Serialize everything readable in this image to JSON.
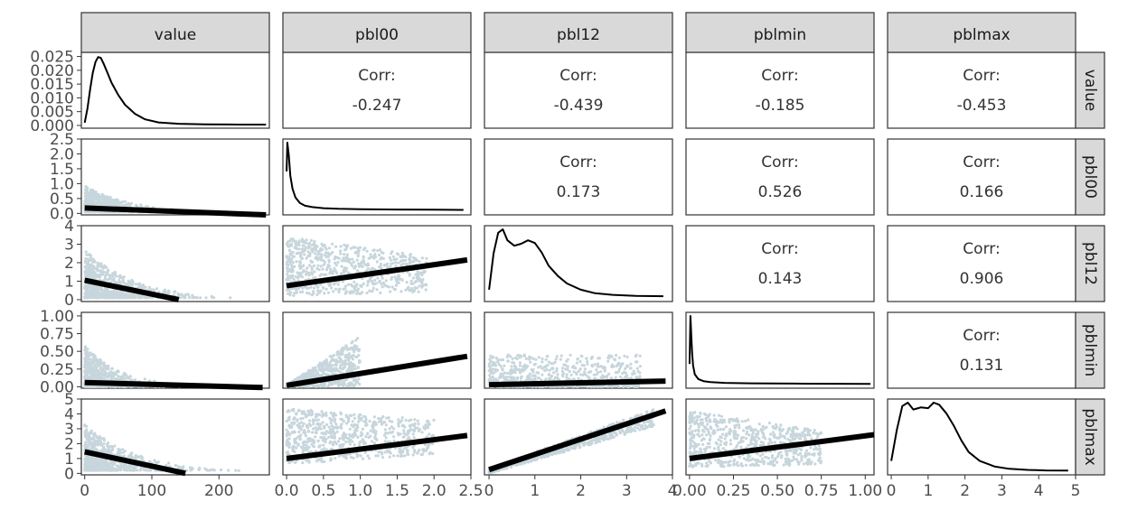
{
  "chart_data": {
    "type": "scatter",
    "variables": [
      "value",
      "pbl00",
      "pbl12",
      "pblmin",
      "pblmax"
    ],
    "lower_layer": "scatter points with linear fit",
    "diagonal_layer": "density",
    "upper_layer": "correlation",
    "colors": {
      "points": "#c7d6dc",
      "lines": "#000000",
      "strip": "#d9d9d9",
      "frame": "#333333"
    },
    "axes": {
      "value": {
        "lim": [
          -5,
          275
        ],
        "ticks": [
          0,
          100,
          200
        ],
        "tick_labels": [
          "0",
          "100",
          "200"
        ]
      },
      "pbl00": {
        "lim": [
          -0.05,
          2.5
        ],
        "ticks": [
          0,
          0.5,
          1,
          1.5,
          2,
          2.5
        ],
        "tick_labels": [
          "0.0",
          "0.5",
          "1.0",
          "1.5",
          "2.0",
          "2.5"
        ]
      },
      "pbl12": {
        "lim": [
          -0.1,
          4
        ],
        "ticks": [
          0,
          1,
          2,
          3,
          4
        ],
        "tick_labels": [
          "0",
          "1",
          "2",
          "3",
          "4"
        ]
      },
      "pblmin": {
        "lim": [
          -0.02,
          1.05
        ],
        "ticks": [
          0,
          0.25,
          0.5,
          0.75,
          1
        ],
        "tick_labels": [
          "0.00",
          "0.25",
          "0.50",
          "0.75",
          "1.00"
        ]
      },
      "pblmax": {
        "lim": [
          -0.1,
          5
        ],
        "ticks": [
          0,
          1,
          2,
          3,
          4,
          5
        ],
        "tick_labels": [
          "0",
          "1",
          "2",
          "3",
          "4",
          "5"
        ]
      }
    },
    "value_density_axis": {
      "lim": [
        -0.001,
        0.0265
      ],
      "ticks": [
        0,
        0.005,
        0.01,
        0.015,
        0.02,
        0.025
      ],
      "tick_labels": [
        "0.000",
        "0.005",
        "0.010",
        "0.015",
        "0.020",
        "0.025"
      ]
    },
    "correlations": [
      {
        "row": "value",
        "col": "pbl00",
        "label": "Corr:",
        "value": "-0.247"
      },
      {
        "row": "value",
        "col": "pbl12",
        "label": "Corr:",
        "value": "-0.439"
      },
      {
        "row": "value",
        "col": "pblmin",
        "label": "Corr:",
        "value": "-0.185"
      },
      {
        "row": "value",
        "col": "pblmax",
        "label": "Corr:",
        "value": "-0.453"
      },
      {
        "row": "pbl00",
        "col": "pbl12",
        "label": "Corr:",
        "value": "0.173"
      },
      {
        "row": "pbl00",
        "col": "pblmin",
        "label": "Corr:",
        "value": "0.526"
      },
      {
        "row": "pbl00",
        "col": "pblmax",
        "label": "Corr:",
        "value": "0.166"
      },
      {
        "row": "pbl12",
        "col": "pblmin",
        "label": "Corr:",
        "value": "0.143"
      },
      {
        "row": "pbl12",
        "col": "pblmax",
        "label": "Corr:",
        "value": "0.906"
      },
      {
        "row": "pblmin",
        "col": "pblmax",
        "label": "Corr:",
        "value": "0.131"
      }
    ],
    "fit_lines": [
      {
        "x_var": "value",
        "y_var": "pbl00",
        "x": [
          0,
          270
        ],
        "y": [
          0.18,
          -0.05
        ]
      },
      {
        "x_var": "value",
        "y_var": "pbl12",
        "x": [
          0,
          140
        ],
        "y": [
          1.05,
          0
        ]
      },
      {
        "x_var": "value",
        "y_var": "pblmin",
        "x": [
          0,
          265
        ],
        "y": [
          0.06,
          -0.01
        ]
      },
      {
        "x_var": "value",
        "y_var": "pblmax",
        "x": [
          0,
          150
        ],
        "y": [
          1.45,
          0
        ]
      },
      {
        "x_var": "pbl00",
        "y_var": "pbl12",
        "x": [
          0,
          2.45
        ],
        "y": [
          0.75,
          2.15
        ]
      },
      {
        "x_var": "pbl00",
        "y_var": "pblmin",
        "x": [
          0,
          2.45
        ],
        "y": [
          0.02,
          0.43
        ]
      },
      {
        "x_var": "pbl00",
        "y_var": "pblmax",
        "x": [
          0,
          2.45
        ],
        "y": [
          1.0,
          2.55
        ]
      },
      {
        "x_var": "pbl12",
        "y_var": "pblmin",
        "x": [
          0,
          3.85
        ],
        "y": [
          0.03,
          0.08
        ]
      },
      {
        "x_var": "pbl12",
        "y_var": "pblmax",
        "x": [
          0,
          3.85
        ],
        "y": [
          0.25,
          4.2
        ]
      },
      {
        "x_var": "pblmin",
        "y_var": "pblmax",
        "x": [
          0,
          1.05
        ],
        "y": [
          1.0,
          2.6
        ]
      }
    ],
    "densities": [
      {
        "var": "value",
        "x": [
          0,
          4,
          8,
          12,
          16,
          20,
          24,
          28,
          34,
          40,
          50,
          60,
          75,
          90,
          110,
          140,
          180,
          230,
          270
        ],
        "y": [
          0.001,
          0.006,
          0.013,
          0.019,
          0.023,
          0.0248,
          0.0245,
          0.0225,
          0.019,
          0.0155,
          0.011,
          0.0075,
          0.0042,
          0.0022,
          0.0011,
          0.0006,
          0.0004,
          0.0003,
          0.0003
        ]
      },
      {
        "var": "pbl00",
        "x": [
          0.0,
          0.01,
          0.03,
          0.05,
          0.08,
          0.12,
          0.18,
          0.25,
          0.35,
          0.5,
          0.7,
          1.0,
          1.5,
          2.0,
          2.4
        ],
        "rel": [
          0.58,
          1.0,
          0.82,
          0.52,
          0.33,
          0.2,
          0.12,
          0.08,
          0.06,
          0.045,
          0.035,
          0.03,
          0.025,
          0.022,
          0.02
        ]
      },
      {
        "var": "pbl12",
        "x": [
          0.0,
          0.1,
          0.2,
          0.3,
          0.4,
          0.55,
          0.7,
          0.85,
          1.0,
          1.15,
          1.3,
          1.5,
          1.7,
          2.0,
          2.3,
          2.7,
          3.2,
          3.8
        ],
        "rel": [
          0.12,
          0.65,
          0.95,
          1.0,
          0.84,
          0.76,
          0.79,
          0.84,
          0.8,
          0.66,
          0.47,
          0.32,
          0.21,
          0.12,
          0.07,
          0.045,
          0.03,
          0.025
        ]
      },
      {
        "var": "pblmin",
        "x": [
          0.0,
          0.005,
          0.01,
          0.015,
          0.02,
          0.03,
          0.05,
          0.08,
          0.12,
          0.2,
          0.35,
          0.6,
          0.85,
          1.03
        ],
        "rel": [
          0.3,
          1.0,
          0.72,
          0.45,
          0.28,
          0.15,
          0.08,
          0.05,
          0.035,
          0.025,
          0.018,
          0.014,
          0.012,
          0.01
        ]
      },
      {
        "var": "pblmax",
        "x": [
          0.0,
          0.15,
          0.3,
          0.45,
          0.6,
          0.8,
          1.0,
          1.15,
          1.3,
          1.5,
          1.7,
          1.9,
          2.1,
          2.4,
          2.8,
          3.2,
          3.7,
          4.2,
          4.8
        ],
        "rel": [
          0.15,
          0.6,
          0.95,
          1.0,
          0.9,
          0.93,
          0.92,
          1.0,
          0.97,
          0.84,
          0.66,
          0.45,
          0.28,
          0.15,
          0.07,
          0.035,
          0.02,
          0.012,
          0.01
        ]
      }
    ]
  }
}
